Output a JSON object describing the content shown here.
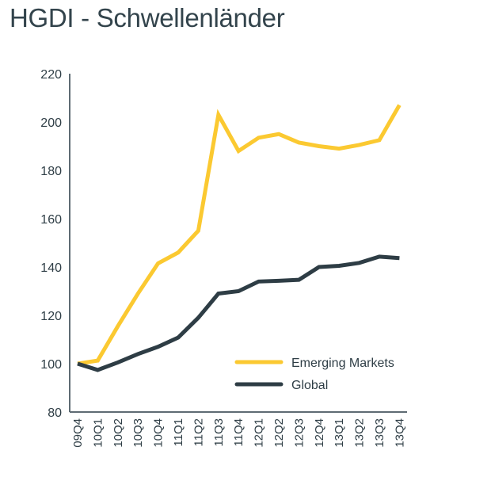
{
  "title": "HGDI - Schwellenländer",
  "chart_data": {
    "type": "line",
    "title": "HGDI - Schwellenländer",
    "xlabel": "",
    "ylabel": "",
    "categories": [
      "09Q4",
      "10Q1",
      "10Q2",
      "10Q3",
      "10Q4",
      "11Q1",
      "11Q2",
      "11Q3",
      "11Q4",
      "12Q1",
      "12Q2",
      "12Q3",
      "12Q4",
      "13Q1",
      "13Q2",
      "13Q3",
      "13Q4"
    ],
    "series": [
      {
        "name": "Emerging Markets",
        "color": "#fbc931",
        "values": [
          100,
          101.3,
          115.5,
          129,
          141.5,
          146,
          155,
          203,
          188,
          193.5,
          195,
          191.5,
          190,
          189,
          190.5,
          192.5,
          207
        ]
      },
      {
        "name": "Global",
        "color": "#2e3d45",
        "values": [
          100,
          97.4,
          100.5,
          104,
          107,
          110.8,
          119,
          129,
          130,
          134,
          134.3,
          134.7,
          140,
          140.5,
          141.7,
          144.3,
          143.7
        ]
      }
    ],
    "ylim": [
      80,
      220
    ],
    "yticks": [
      80,
      100,
      120,
      140,
      160,
      180,
      200,
      220
    ],
    "grid": false,
    "legend_position": "bottom-right",
    "axis_color": "#5e6b73"
  }
}
